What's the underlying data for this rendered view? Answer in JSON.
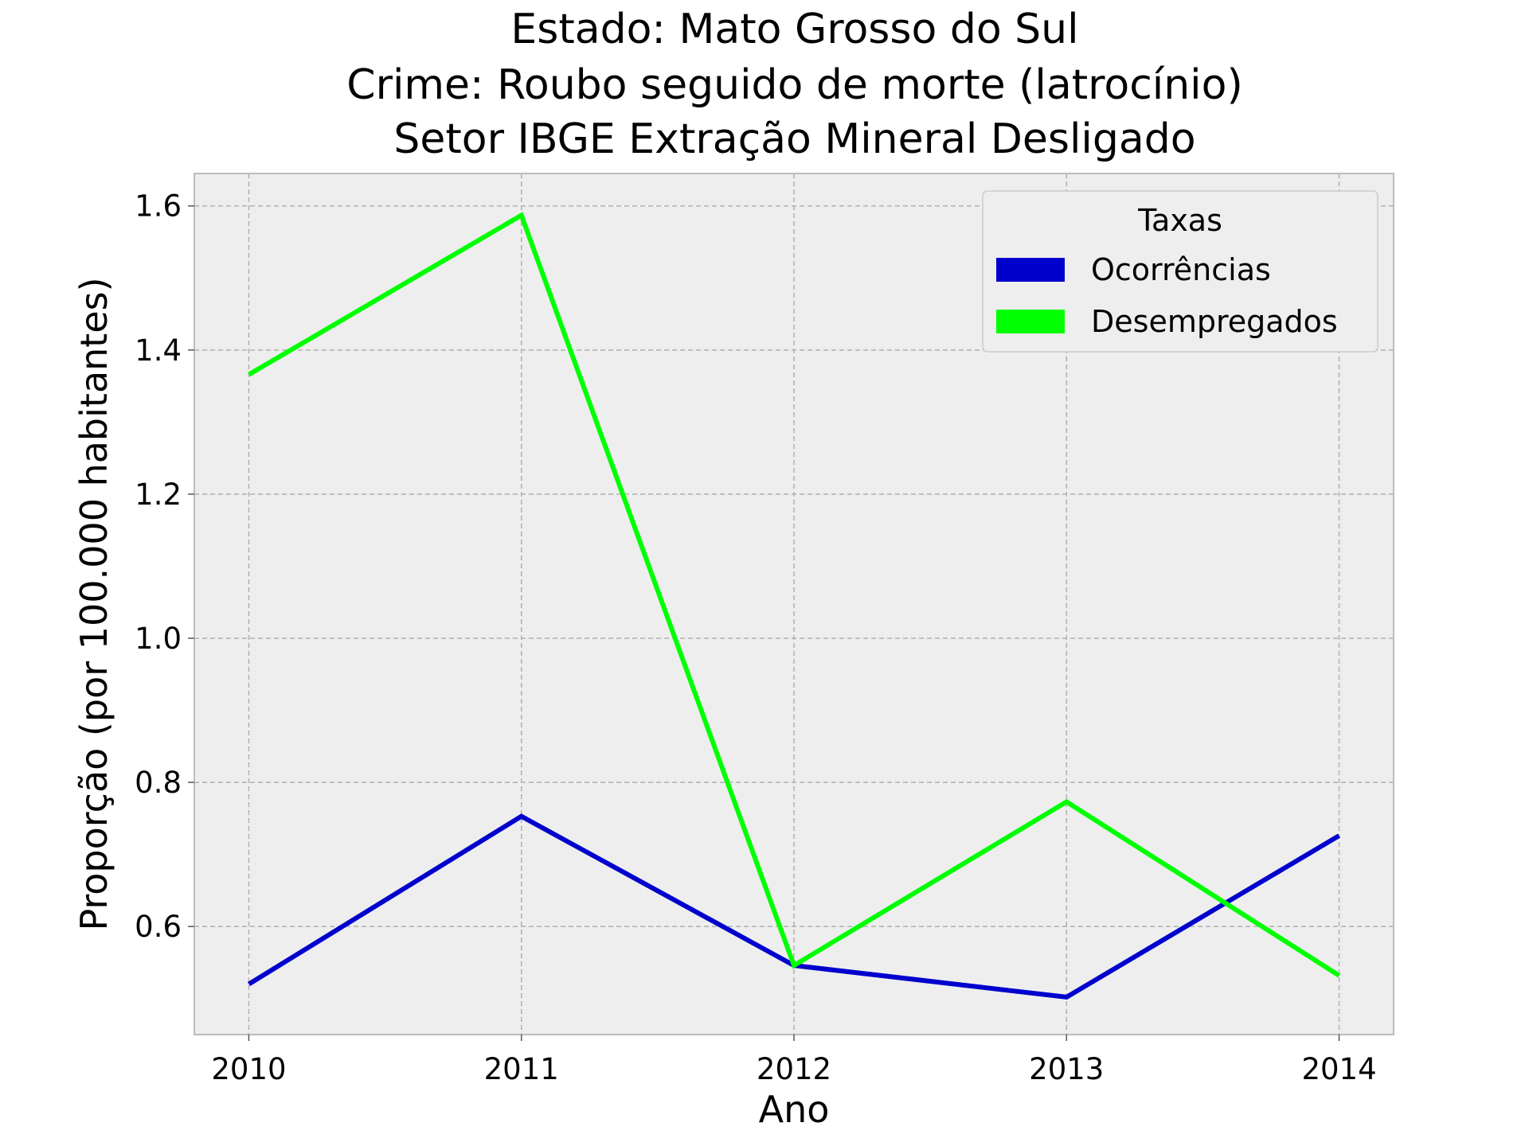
{
  "chart_data": {
    "type": "line",
    "title": [
      "Estado: Mato Grosso do Sul",
      "Crime: Roubo seguido de morte (latrocínio)",
      "Setor IBGE  Extração Mineral   Desligado"
    ],
    "xlabel": "Ano",
    "ylabel": "Proporção (por 100.000 habitantes)",
    "x": [
      2010,
      2011,
      2012,
      2013,
      2014
    ],
    "x_ticks": [
      "2010",
      "2011",
      "2012",
      "2013",
      "2014"
    ],
    "y_ticks": [
      "0.6",
      "0.8",
      "1.0",
      "1.2",
      "1.4",
      "1.6"
    ],
    "xlim": [
      2009.8,
      2014.2
    ],
    "ylim": [
      0.45,
      1.645
    ],
    "grid": true,
    "legend": {
      "title": "Taxas",
      "placement": "top-right"
    },
    "series": [
      {
        "name": "Ocorrências",
        "color": "#0000cd",
        "values": [
          0.52,
          0.753,
          0.546,
          0.502,
          0.726
        ]
      },
      {
        "name": "Desempregados",
        "color": "#00ff00",
        "values": [
          1.366,
          1.587,
          0.546,
          0.773,
          0.532
        ]
      }
    ]
  },
  "colors": {
    "plot_background": "#eeeeee",
    "frame": "#bcbcbc",
    "legend_background": "#eeeeee"
  }
}
